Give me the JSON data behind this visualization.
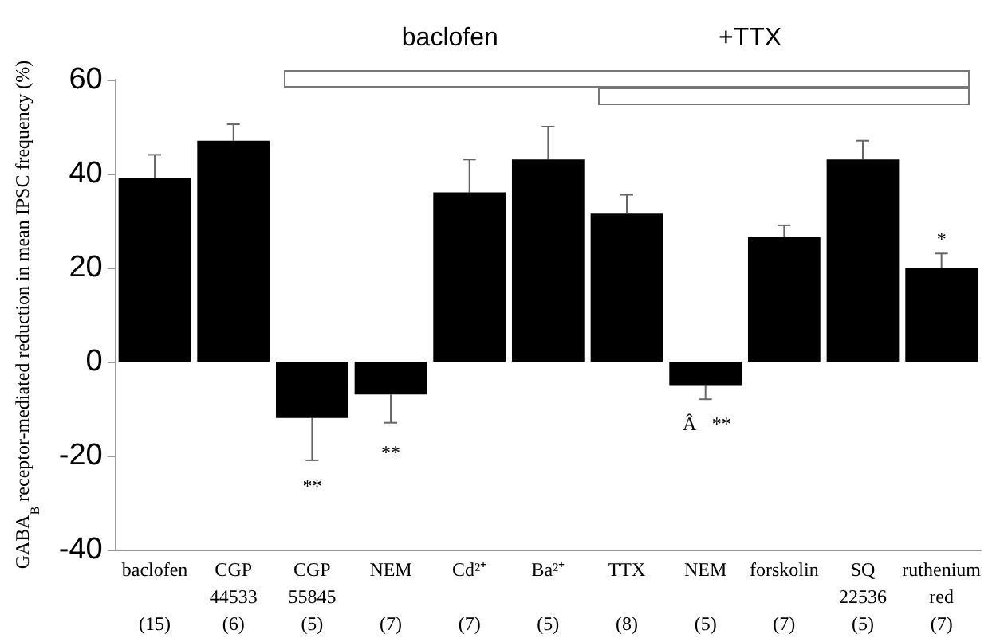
{
  "chart_data": {
    "type": "bar",
    "ylabel": "GABA$_{B}$ receptor-mediated reduction in mean IPSC frequency (%)",
    "categories": [
      "baclofen\n\n(15)",
      "CGP\n44533\n(6)",
      "CGP\n55845\n(5)",
      "NEM\n\n(7)",
      "Cd²⁺\n\n(7)",
      "Ba²⁺\n\n(5)",
      "TTX\n\n(8)",
      "NEM\n\n(5)",
      "forskolin\n\n(7)",
      "SQ\n22536\n(5)",
      "ruthenium\nred\n(7)"
    ],
    "values": [
      39,
      47,
      -12,
      -7,
      36,
      43,
      31.5,
      -5,
      26.5,
      43,
      20
    ],
    "errors": [
      5,
      3.5,
      9,
      6,
      7,
      7,
      4,
      3,
      2.5,
      4,
      3
    ],
    "color": "#000000",
    "ylim": [
      -40,
      60
    ],
    "yticks": [
      -40,
      -20,
      0,
      20,
      40,
      60
    ],
    "grid": false,
    "annotations": [
      "baclofen",
      "+TTX",
      "**",
      "**",
      "Â",
      "**",
      "*"
    ]
  }
}
